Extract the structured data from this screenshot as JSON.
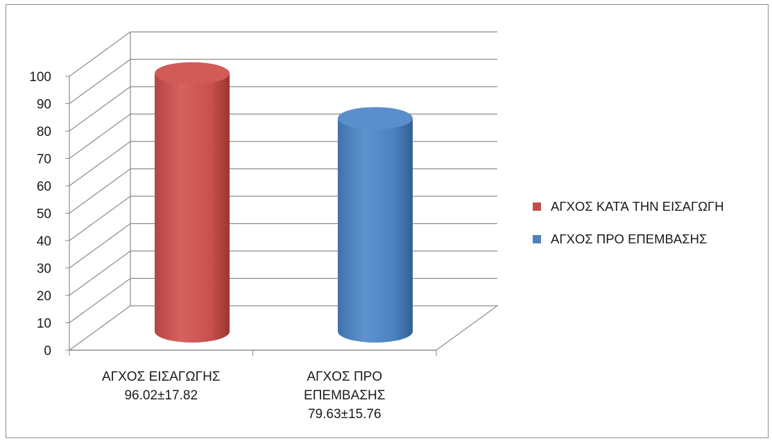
{
  "chart_data": {
    "type": "bar",
    "style": "3d-cylinder",
    "categories": [
      "ΑΓΧΟΣ ΕΙΣΑΓΩΓΗΣ 96.02±17.82",
      "ΑΓΧΟΣ ΠΡΟ ΕΠΕΜΒΑΣΗΣ 79.63±15.76"
    ],
    "category_lines": [
      [
        "ΑΓΧΟΣ ΕΙΣΑΓΩΓΗΣ",
        "96.02±17.82"
      ],
      [
        "ΑΓΧΟΣ ΠΡΟ",
        "ΕΠΕΜΒΑΣΗΣ",
        "79.63±15.76"
      ]
    ],
    "series": [
      {
        "name": "ΑΓΧΟΣ ΚΑΤΆ ΤΗΝ ΕΙΣΑΓΩΓΗ",
        "color": "#c0504d",
        "values": [
          96.02,
          null
        ]
      },
      {
        "name": "ΑΓΧΟΣ ΠΡΟ ΕΠΕΜΒΑΣΗΣ",
        "color": "#4f81bd",
        "values": [
          null,
          79.63
        ]
      }
    ],
    "ylim": [
      0,
      100
    ],
    "yticks": [
      "0",
      "10",
      "20",
      "30",
      "40",
      "50",
      "60",
      "70",
      "80",
      "90",
      "100"
    ],
    "grid": true,
    "legend_position": "right"
  }
}
